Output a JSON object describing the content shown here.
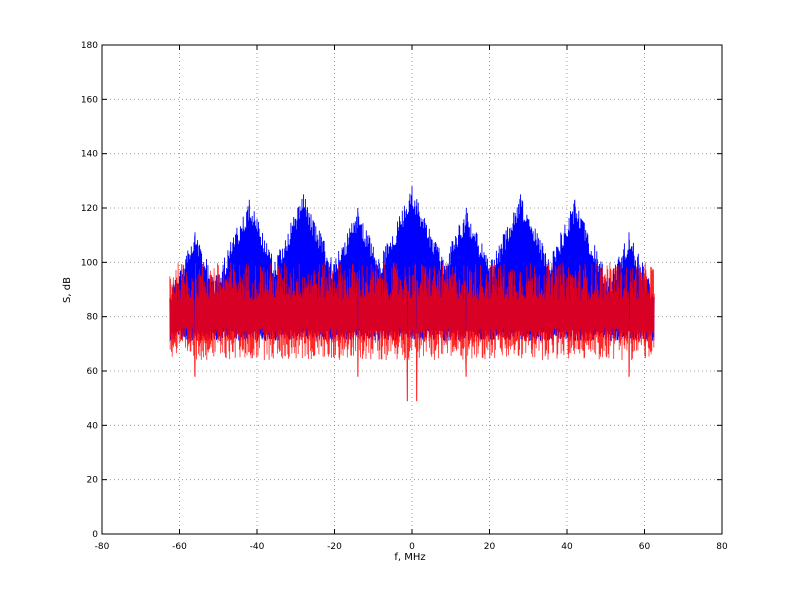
{
  "chart_data": {
    "type": "line",
    "xlabel": "f, MHz",
    "ylabel": "S, dB",
    "xlim": [
      -80,
      80
    ],
    "ylim": [
      0,
      180
    ],
    "xticks": [
      -80,
      -60,
      -40,
      -20,
      0,
      20,
      40,
      60,
      80
    ],
    "yticks": [
      0,
      20,
      40,
      60,
      80,
      100,
      120,
      140,
      160,
      180
    ],
    "xtick_labels": [
      "-80",
      "-60",
      "-40",
      "-20",
      "0",
      "20",
      "40",
      "60",
      "80"
    ],
    "ytick_labels": [
      "0",
      "20",
      "40",
      "60",
      "80",
      "100",
      "120",
      "140",
      "160",
      "180"
    ],
    "grid": true,
    "x_range_of_data": [
      -62.5,
      62.5
    ],
    "series": [
      {
        "color": "#0000ff",
        "peaks": [
          {
            "x": -56,
            "y": 111
          },
          {
            "x": -42,
            "y": 123
          },
          {
            "x": -28,
            "y": 125
          },
          {
            "x": -14,
            "y": 120
          },
          {
            "x": 0,
            "y": 128
          },
          {
            "x": 14,
            "y": 120
          },
          {
            "x": 28,
            "y": 125
          },
          {
            "x": 42,
            "y": 123
          },
          {
            "x": 56,
            "y": 111
          }
        ],
        "baseline": 80
      },
      {
        "color": "#ff0000",
        "baseline": 82,
        "deep_notches": [
          {
            "x": -1.2,
            "y": 49
          },
          {
            "x": 1.2,
            "y": 49
          },
          {
            "x": -56,
            "y": 58
          },
          {
            "x": 56,
            "y": 58
          },
          {
            "x": -14,
            "y": 58
          },
          {
            "x": 14,
            "y": 58
          }
        ]
      }
    ]
  }
}
